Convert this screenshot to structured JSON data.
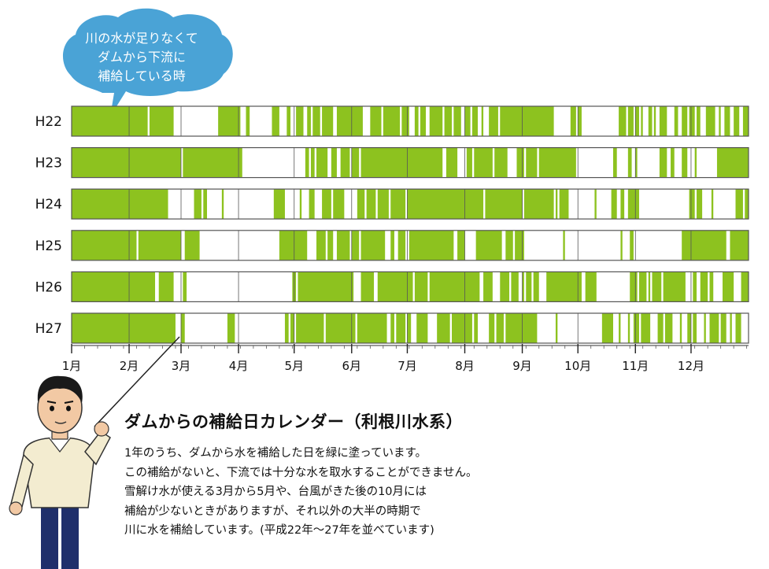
{
  "bubble": {
    "lines": [
      "川の水が足りなくて",
      "ダムから下流に",
      "補給している時"
    ],
    "color": "#4aa3d6"
  },
  "caption": {
    "title": "ダムからの補給日カレンダー（利根川水系）",
    "lines": [
      "1年のうち、ダムから水を補給した日を緑に塗っています。",
      "この補給がないと、下流では十分な水を取水することができません。",
      "雪解け水が使える3月から5月や、台風がきた後の10月には",
      "補給が少ないときがありますが、それ以外の大半の時期で",
      "川に水を補給しています。(平成22年～27年を並べています)"
    ]
  },
  "colors": {
    "fill": "#8dc21f",
    "border": "#555555"
  },
  "chart_data": {
    "type": "heatmap",
    "x_unit": "day of year",
    "xlim": [
      1,
      365
    ],
    "month_labels": [
      "1月",
      "2月",
      "3月",
      "4月",
      "5月",
      "6月",
      "7月",
      "8月",
      "9月",
      "10月",
      "11月",
      "12月"
    ],
    "month_starts": [
      1,
      32,
      60,
      91,
      121,
      152,
      182,
      213,
      244,
      274,
      305,
      335
    ],
    "rows": [
      {
        "label": "H22",
        "supply_days": [
          [
            1,
            41
          ],
          [
            43,
            55
          ],
          [
            80,
            91
          ],
          [
            95,
            96
          ],
          [
            109,
            112
          ],
          [
            117,
            118
          ],
          [
            122,
            125
          ],
          [
            128,
            129
          ],
          [
            131,
            134
          ],
          [
            136,
            141
          ],
          [
            144,
            157
          ],
          [
            162,
            167
          ],
          [
            169,
            177
          ],
          [
            179,
            182
          ],
          [
            186,
            187
          ],
          [
            189,
            191
          ],
          [
            194,
            200
          ],
          [
            202,
            205
          ],
          [
            207,
            210
          ],
          [
            213,
            215
          ],
          [
            217,
            219
          ],
          [
            222,
            222
          ],
          [
            226,
            230
          ],
          [
            232,
            260
          ],
          [
            270,
            272
          ],
          [
            274,
            275
          ],
          [
            296,
            299
          ],
          [
            301,
            303
          ],
          [
            305,
            306
          ],
          [
            308,
            308
          ],
          [
            312,
            313
          ],
          [
            315,
            315
          ],
          [
            318,
            321
          ],
          [
            326,
            327
          ],
          [
            330,
            332
          ],
          [
            334,
            336
          ],
          [
            338,
            339
          ],
          [
            343,
            347
          ],
          [
            350,
            350
          ],
          [
            353,
            355
          ],
          [
            358,
            360
          ],
          [
            363,
            365
          ]
        ]
      },
      {
        "label": "H23",
        "supply_days": [
          [
            1,
            59
          ],
          [
            61,
            92
          ],
          [
            127,
            128
          ],
          [
            130,
            131
          ],
          [
            133,
            138
          ],
          [
            141,
            143
          ],
          [
            146,
            150
          ],
          [
            152,
            155
          ],
          [
            157,
            200
          ],
          [
            203,
            208
          ],
          [
            214,
            216
          ],
          [
            218,
            227
          ],
          [
            229,
            235
          ],
          [
            241,
            244
          ],
          [
            246,
            251
          ],
          [
            253,
            272
          ],
          [
            293,
            294
          ],
          [
            301,
            302
          ],
          [
            305,
            305
          ],
          [
            318,
            321
          ],
          [
            324,
            325
          ],
          [
            330,
            332
          ],
          [
            337,
            337
          ],
          [
            349,
            365
          ]
        ]
      },
      {
        "label": "H24",
        "supply_days": [
          [
            1,
            52
          ],
          [
            67,
            70
          ],
          [
            72,
            73
          ],
          [
            82,
            82
          ],
          [
            110,
            115
          ],
          [
            124,
            124
          ],
          [
            129,
            131
          ],
          [
            136,
            140
          ],
          [
            142,
            147
          ],
          [
            155,
            158
          ],
          [
            160,
            164
          ],
          [
            166,
            171
          ],
          [
            173,
            180
          ],
          [
            182,
            222
          ],
          [
            224,
            243
          ],
          [
            245,
            260
          ],
          [
            262,
            262
          ],
          [
            264,
            268
          ],
          [
            283,
            283
          ],
          [
            292,
            294
          ],
          [
            297,
            298
          ],
          [
            301,
            306
          ],
          [
            334,
            336
          ],
          [
            338,
            340
          ],
          [
            346,
            346
          ],
          [
            359,
            362
          ],
          [
            364,
            365
          ]
        ]
      },
      {
        "label": "H25",
        "supply_days": [
          [
            1,
            35
          ],
          [
            37,
            59
          ],
          [
            62,
            69
          ],
          [
            113,
            127
          ],
          [
            133,
            137
          ],
          [
            139,
            141
          ],
          [
            144,
            150
          ],
          [
            152,
            155
          ],
          [
            157,
            169
          ],
          [
            173,
            174
          ],
          [
            177,
            180
          ],
          [
            183,
            206
          ],
          [
            209,
            212
          ],
          [
            219,
            232
          ],
          [
            235,
            238
          ],
          [
            240,
            244
          ],
          [
            266,
            266
          ],
          [
            297,
            297
          ],
          [
            302,
            303
          ],
          [
            330,
            353
          ],
          [
            356,
            365
          ]
        ]
      },
      {
        "label": "H26",
        "supply_days": [
          [
            1,
            45
          ],
          [
            48,
            55
          ],
          [
            61,
            62
          ],
          [
            120,
            121
          ],
          [
            123,
            152
          ],
          [
            157,
            163
          ],
          [
            166,
            184
          ],
          [
            186,
            192
          ],
          [
            194,
            220
          ],
          [
            223,
            227
          ],
          [
            232,
            236
          ],
          [
            238,
            241
          ],
          [
            244,
            244
          ],
          [
            246,
            248
          ],
          [
            250,
            252
          ],
          [
            256,
            255
          ],
          [
            257,
            275
          ],
          [
            278,
            283
          ],
          [
            302,
            305
          ],
          [
            307,
            310
          ],
          [
            312,
            312
          ],
          [
            314,
            318
          ],
          [
            320,
            331
          ],
          [
            336,
            337
          ],
          [
            340,
            343
          ],
          [
            345,
            346
          ],
          [
            352,
            357
          ],
          [
            362,
            365
          ]
        ]
      },
      {
        "label": "H27",
        "supply_days": [
          [
            1,
            56
          ],
          [
            60,
            61
          ],
          [
            85,
            88
          ],
          [
            116,
            117
          ],
          [
            119,
            120
          ],
          [
            122,
            136
          ],
          [
            138,
            153
          ],
          [
            155,
            170
          ],
          [
            172,
            169
          ],
          [
            173,
            174
          ],
          [
            176,
            180
          ],
          [
            182,
            183
          ],
          [
            187,
            192
          ],
          [
            198,
            204
          ],
          [
            206,
            216
          ],
          [
            218,
            219
          ],
          [
            226,
            228
          ],
          [
            230,
            233
          ],
          [
            235,
            251
          ],
          [
            262,
            262
          ],
          [
            287,
            292
          ],
          [
            296,
            296
          ],
          [
            301,
            301
          ],
          [
            304,
            306
          ],
          [
            308,
            312
          ],
          [
            317,
            319
          ],
          [
            321,
            324
          ],
          [
            329,
            329
          ],
          [
            333,
            334
          ],
          [
            336,
            337
          ],
          [
            342,
            342
          ],
          [
            345,
            349
          ],
          [
            351,
            353
          ],
          [
            356,
            356
          ],
          [
            359,
            361
          ]
        ]
      }
    ]
  }
}
